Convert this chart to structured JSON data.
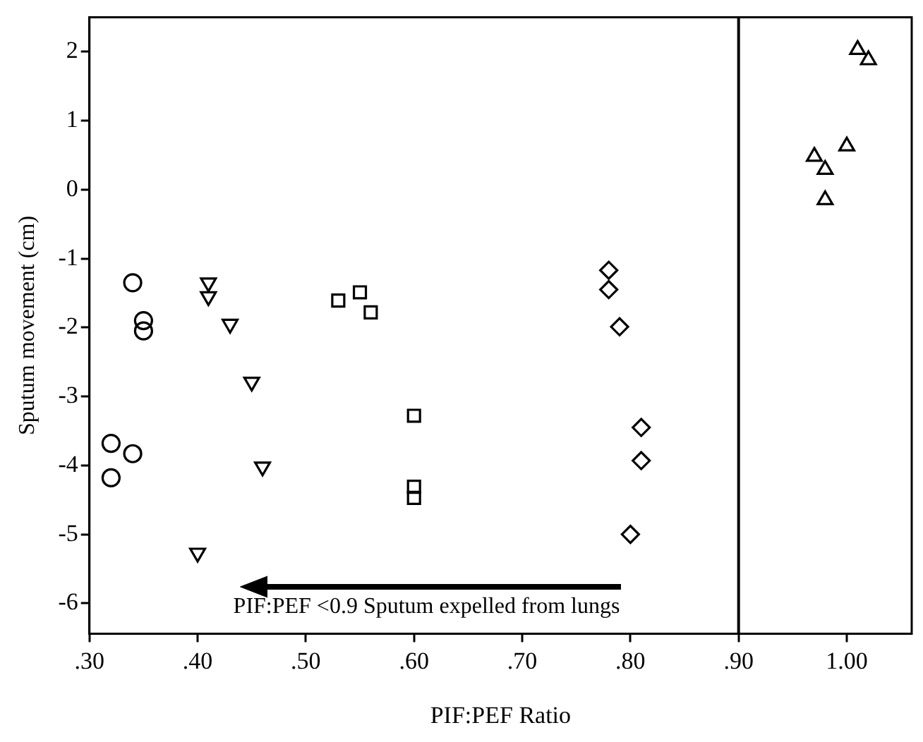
{
  "chart_data": {
    "type": "scatter",
    "xlabel": "PIF:PEF Ratio",
    "ylabel": "Sputum movement (cm)",
    "series": [
      {
        "color": "#000000",
        "marker": "circle",
        "x": [
          0.34,
          0.35,
          0.35,
          0.32,
          0.34,
          0.32
        ],
        "values": [
          -1.35,
          -1.9,
          -2.05,
          -3.68,
          -3.83,
          -4.18
        ]
      },
      {
        "color": "#000000",
        "marker": "triangle-down",
        "x": [
          0.41,
          0.41,
          0.43,
          0.45,
          0.46,
          0.4
        ],
        "values": [
          -1.35,
          -1.55,
          -1.95,
          -2.79,
          -4.02,
          -5.27
        ]
      },
      {
        "color": "#000000",
        "marker": "square",
        "x": [
          0.53,
          0.55,
          0.56,
          0.6,
          0.6,
          0.6
        ],
        "values": [
          -1.61,
          -1.49,
          -1.78,
          -3.28,
          -4.31,
          -4.47
        ]
      },
      {
        "color": "#000000",
        "marker": "diamond",
        "x": [
          0.78,
          0.78,
          0.79,
          0.81,
          0.81,
          0.8
        ],
        "values": [
          -1.17,
          -1.45,
          -1.99,
          -3.45,
          -3.93,
          -5.0
        ]
      },
      {
        "color": "#000000",
        "marker": "triangle",
        "x": [
          1.01,
          1.02,
          1.0,
          0.97,
          0.98,
          0.98
        ],
        "values": [
          2.03,
          1.88,
          0.63,
          0.48,
          0.29,
          -0.15
        ]
      }
    ],
    "xlim": [
      0.3,
      1.06
    ],
    "ylim": [
      -6.44,
      2.5
    ],
    "xticks": [
      {
        "value": 0.3,
        "label": ".30"
      },
      {
        "value": 0.4,
        "label": ".40"
      },
      {
        "value": 0.5,
        "label": ".50"
      },
      {
        "value": 0.6,
        "label": ".60"
      },
      {
        "value": 0.7,
        "label": ".70"
      },
      {
        "value": 0.8,
        "label": ".80"
      },
      {
        "value": 0.9,
        "label": ".90"
      },
      {
        "value": 1.0,
        "label": "1.00"
      }
    ],
    "yticks": [
      -6,
      -5,
      -4,
      -3,
      -2,
      -1,
      0,
      1,
      2
    ],
    "ref_lines": [
      {
        "axis": "x",
        "value": 0.9,
        "color": "#000000"
      }
    ],
    "annotations": [
      "PIF:PEF <0.9 Sputum expelled from lungs"
    ],
    "grid": false,
    "legend": false
  }
}
